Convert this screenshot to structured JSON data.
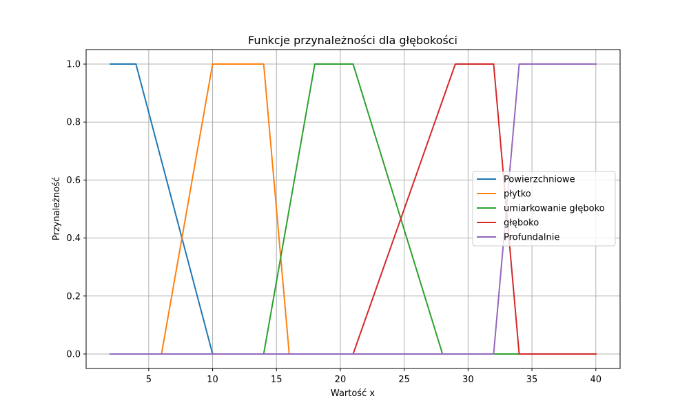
{
  "chart_data": {
    "type": "line",
    "title": "Funkcje przynależności dla głębokości",
    "xlabel": "Wartość x",
    "ylabel": "Przynależność",
    "xlim": [
      0.1,
      41.9
    ],
    "ylim": [
      -0.05,
      1.05
    ],
    "xticks": [
      5,
      10,
      15,
      20,
      25,
      30,
      35,
      40
    ],
    "yticks": [
      0.0,
      0.2,
      0.4,
      0.6,
      0.8,
      1.0
    ],
    "xtick_labels": [
      "5",
      "10",
      "15",
      "20",
      "25",
      "30",
      "35",
      "40"
    ],
    "ytick_labels": [
      "0.0",
      "0.2",
      "0.4",
      "0.6",
      "0.8",
      "1.0"
    ],
    "grid": true,
    "legend_position": "center-right",
    "series": [
      {
        "name": "Powierzchniowe",
        "color": "#1f77b4",
        "x": [
          2,
          4,
          10,
          40
        ],
        "y": [
          1,
          1,
          0,
          0
        ]
      },
      {
        "name": "płytko",
        "color": "#ff7f0e",
        "x": [
          2,
          6,
          10,
          14,
          16,
          40
        ],
        "y": [
          0,
          0,
          1,
          1,
          0,
          0
        ]
      },
      {
        "name": "umiarkowanie głęboko",
        "color": "#2ca02c",
        "x": [
          2,
          14,
          18,
          21,
          28,
          40
        ],
        "y": [
          0,
          0,
          1,
          1,
          0,
          0
        ]
      },
      {
        "name": "głęboko",
        "color": "#d62728",
        "x": [
          2,
          21,
          29,
          32,
          34,
          40
        ],
        "y": [
          0,
          0,
          1,
          1,
          0,
          0
        ]
      },
      {
        "name": "Profundalnie",
        "color": "#9467bd",
        "x": [
          2,
          32,
          34,
          40
        ],
        "y": [
          0,
          0,
          1,
          1
        ]
      }
    ]
  }
}
